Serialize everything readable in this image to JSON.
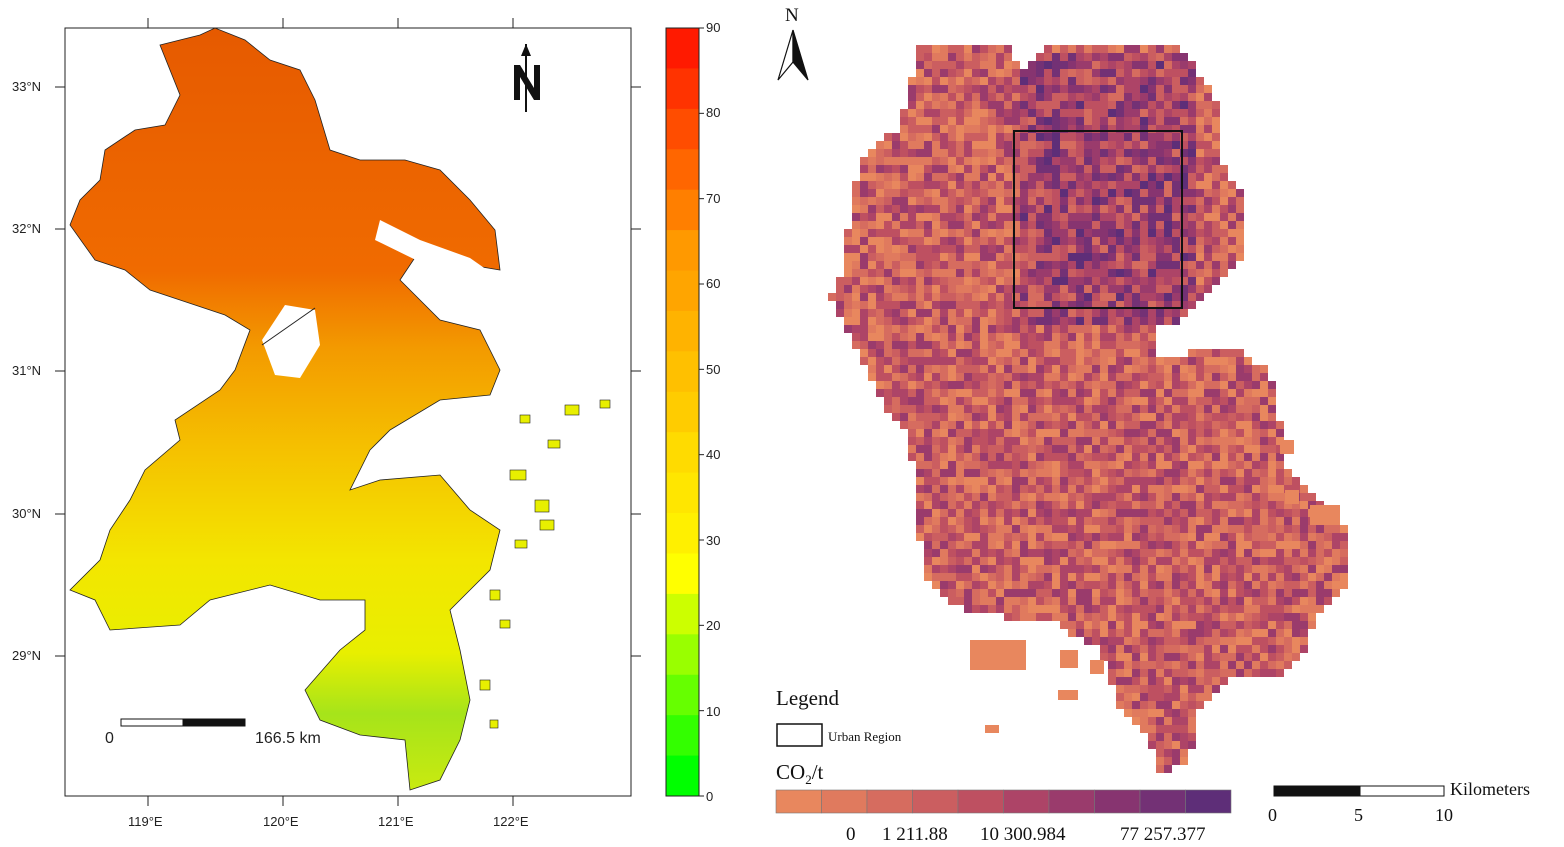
{
  "left_map": {
    "lat_labels": [
      "33°N",
      "32°N",
      "31°N",
      "30°N",
      "29°N"
    ],
    "lon_labels": [
      "119°E",
      "120°E",
      "121°E",
      "122°E"
    ],
    "north_arrow_label": "N",
    "scalebar": {
      "start_label": "0",
      "end_label": "166.5 km"
    },
    "colorbar": {
      "labels": [
        "90",
        "80",
        "70",
        "60",
        "50",
        "40",
        "30",
        "20",
        "10",
        "0"
      ],
      "min": 0,
      "max": 90,
      "colors_high_to_low": [
        "#ff1a00",
        "#ff3300",
        "#ff4d00",
        "#ff6600",
        "#ff7f00",
        "#ff9900",
        "#ffa500",
        "#ffb300",
        "#ffc000",
        "#ffcc00",
        "#ffdb00",
        "#ffe600",
        "#fff000",
        "#ffff00",
        "#ccff00",
        "#99ff00",
        "#66ff00",
        "#33ff00",
        "#00ff00"
      ]
    }
  },
  "right_map": {
    "north_label": "N",
    "legend": {
      "title": "Legend",
      "urban_label": "Urban Region",
      "co2_prefix": "CO",
      "co2_sub": "2",
      "co2_suffix": "/t",
      "ramp_colors": [
        "#e8875e",
        "#e07a5e",
        "#d66c5f",
        "#cb5e60",
        "#be5061",
        "#ad4467",
        "#9a3b6c",
        "#873470",
        "#733175",
        "#5e2e78"
      ],
      "ramp_labels": [
        "0",
        "1 211.88",
        "10 300.984",
        "77 257.377"
      ]
    },
    "scalebar": {
      "labels": [
        "0",
        "5",
        "10"
      ],
      "unit": "Kilometers"
    }
  }
}
